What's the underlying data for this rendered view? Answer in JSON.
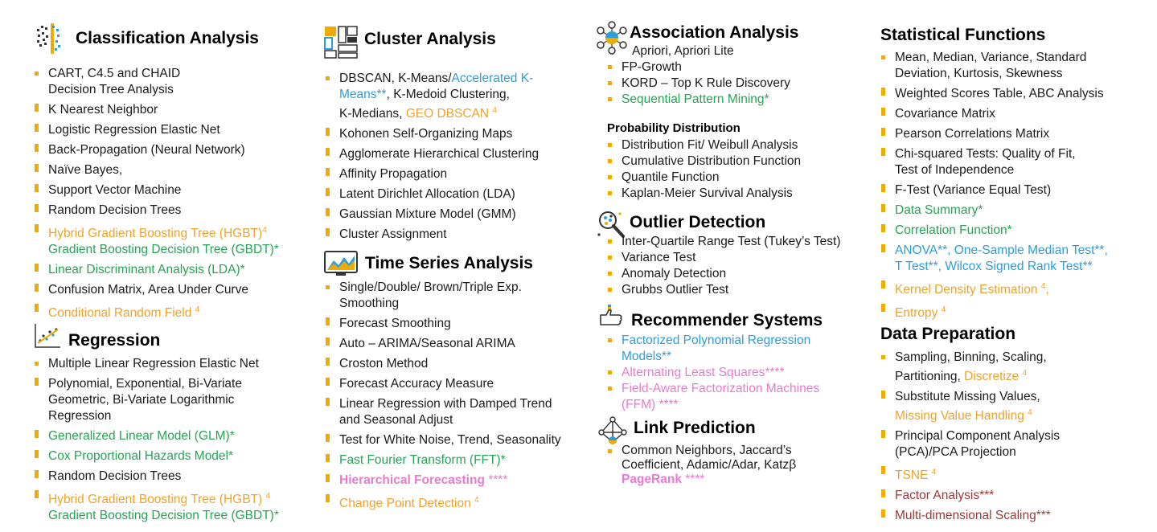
{
  "col1": {
    "classification": {
      "title": "Classification Analysis",
      "items": [
        [
          "CART, C4.5 and CHAID",
          "Decision Tree Analysis"
        ],
        [
          "K Nearest Neighbor"
        ],
        [
          "Logistic Regression Elastic Net"
        ],
        [
          "Back-Propagation (Neural Network)"
        ],
        [
          "Naïve Bayes,"
        ],
        [
          "Support Vector Machine"
        ],
        [
          "Random Decision Trees"
        ]
      ],
      "hgbt": "Hybrid Gradient Boosting Tree (HGBT)",
      "hgbt_sup": "4",
      "gbdt": "Gradient Boosting Decision Tree (GBDT)*",
      "lda": "Linear Discriminant Analysis (LDA)*",
      "confusion": "Confusion Matrix, Area Under Curve",
      "crf": "Conditional Random Field",
      "crf_sup": "4"
    },
    "regression": {
      "title": "Regression",
      "item1": "Multiple Linear Regression Elastic Net",
      "item2a": "Polynomial, Exponential, Bi-Variate",
      "item2b": "Geometric, Bi-Variate Logarithmic",
      "item2c": "Regression",
      "glm": "Generalized Linear Model (GLM)*",
      "cox": "Cox Proportional Hazards Model*",
      "rdt": "Random Decision Trees",
      "hgbt": "Hybrid Gradient Boosting Tree (HGBT)",
      "hgbt_sup": "4",
      "gbdt": "Gradient Boosting Decision Tree (GBDT)*"
    }
  },
  "col2": {
    "cluster": {
      "title": "Cluster Analysis",
      "l1a": "DBSCAN, K-Means/",
      "l1b": "Accelerated K-",
      "l1c": "Means**",
      "l1d": ", K-Medoid Clustering,",
      "l1e": "K-Medians, ",
      "l1f": "GEO DBSCAN",
      "l1f_sup": "4",
      "items": [
        "Kohonen Self-Organizing Maps",
        "Agglomerate Hierarchical Clustering",
        "Affinity Propagation",
        "Latent Dirichlet Allocation (LDA)",
        "Gaussian Mixture Model (GMM)",
        "Cluster Assignment"
      ]
    },
    "timeseries": {
      "title": "Time Series Analysis",
      "s1a": "Single/Double/ Brown/Triple Exp.",
      "s1b": "Smoothing",
      "items": [
        "Forecast Smoothing",
        "Auto – ARIMA/Seasonal ARIMA",
        "Croston Method",
        "Forecast Accuracy Measure"
      ],
      "lr_a": "Linear Regression with Damped Trend",
      "lr_b": "and Seasonal Adjust",
      "wn": "Test for White Noise, Trend, Seasonality",
      "fft": "Fast Fourier Transform (FFT)*",
      "hf": "Hierarchical Forecasting",
      "hf_star": " ****",
      "cpd": "Change Point Detection",
      "cpd_sup": "4"
    }
  },
  "col3": {
    "association": {
      "title": "Association Analysis",
      "line0": "Apriori, Apriori Lite",
      "fp": "FP-Growth",
      "kord": "KORD – Top K Rule Discovery",
      "spm": "Sequential Pattern Mining*"
    },
    "probability": {
      "title": "Probability Distribution",
      "items": [
        "Distribution Fit/ Weibull Analysis",
        "Cumulative Distribution Function",
        "Quantile Function",
        "Kaplan-Meier Survival Analysis"
      ]
    },
    "outlier": {
      "title": "Outlier Detection",
      "items": [
        "Inter-Quartile Range Test (Tukey’s Test)",
        "Variance Test",
        "Anomaly Detection",
        "Grubbs Outlier Test"
      ]
    },
    "recommender": {
      "title": "Recommender Systems",
      "fpr_a": "Factorized Polynomial Regression",
      "fpr_b": "Models**",
      "als": "Alternating Least Squares****",
      "ffm_a": "Field-Aware Factorization Machines",
      "ffm_b": "(FFM) ****"
    },
    "link": {
      "title": "Link Prediction",
      "l1": "Common Neighbors, Jaccard’s",
      "l2": "Coefficient, Adamic/Adar, Katzβ",
      "pr": "PageRank",
      "pr_star": " ****"
    }
  },
  "col4": {
    "statistical": {
      "title": "Statistical Functions",
      "m_a": "Mean, Median, Variance, Standard",
      "m_b": "Deviation, Kurtosis, Skewness",
      "items": [
        "Weighted Scores Table, ABC Analysis",
        "Covariance Matrix",
        "Pearson Correlations Matrix"
      ],
      "chi_a": "Chi-squared Tests: Quality of Fit,",
      "chi_b": "Test of Independence",
      "ftest": "F-Test (Variance Equal Test)",
      "ds": "Data Summary*",
      "cf": "Correlation Function*",
      "anova_a": "ANOVA**, One-Sample Median Test**,",
      "anova_b": "T Test**, Wilcox Signed Rank Test**",
      "kde": "Kernel Density Estimation",
      "kde_sup": "4",
      "kde_tail": ",",
      "ent": "Entropy",
      "ent_sup": "4"
    },
    "dataprep": {
      "title": "Data Preparation",
      "s_a": "Sampling, Binning, Scaling,",
      "s_b": "Partitioning, ",
      "s_c": "Discretize",
      "s_c_sup": "4",
      "m_a": "Substitute Missing Values,",
      "m_b": "Missing Value Handling",
      "m_b_sup": "4",
      "pca_a": "Principal Component Analysis",
      "pca_b": "(PCA)/PCA Projection",
      "tsne": "TSNE",
      "tsne_sup": "4",
      "fa": "Factor Analysis***",
      "mds": "Multi-dimensional Scaling***"
    }
  },
  "colors": {
    "bullet": "#f0ab00",
    "green": "#27a356",
    "orange": "#f0a32a",
    "blue": "#2b9fdb",
    "pink": "#e77bd0",
    "darkred": "#9b3a3a"
  },
  "icons": [
    "classification-icon",
    "regression-icon",
    "cluster-icon",
    "time-series-icon",
    "association-icon",
    "outlier-icon",
    "recommender-icon",
    "link-prediction-icon"
  ]
}
